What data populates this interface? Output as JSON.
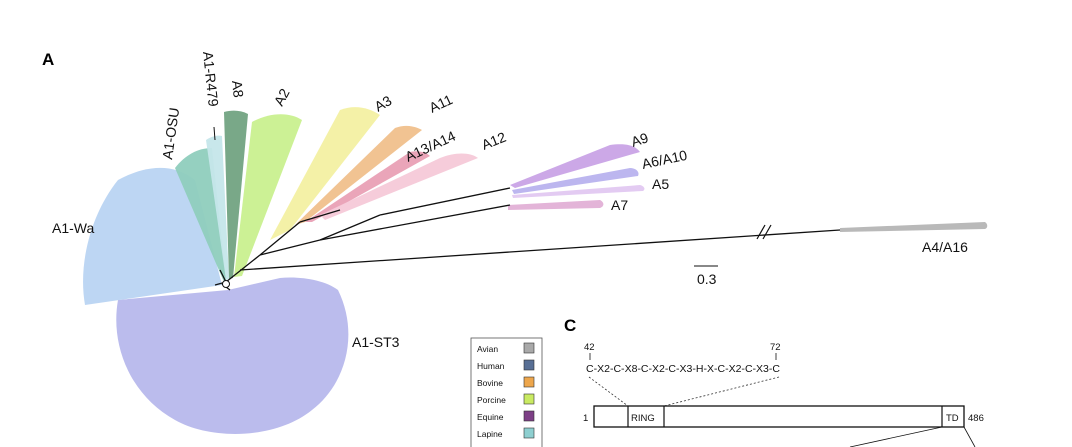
{
  "panels": {
    "a": "A",
    "c": "C"
  },
  "clades": {
    "wa": "A1-Wa",
    "osu": "A1-OSU",
    "r479": "A1-R479",
    "a8": "A8",
    "a2": "A2",
    "a3": "A3",
    "a11": "A11",
    "a13": "A13/A14",
    "a12": "A12",
    "a9": "A9",
    "a6": "A6/A10",
    "a5": "A5",
    "a7": "A7",
    "a4": "A4/A16",
    "st3": "A1-ST3"
  },
  "clade_colors": {
    "wa": "#b9d4f2",
    "osu": "#8fcdbd",
    "r479": "#c5e6ea",
    "a8": "#72a382",
    "a2": "#c9f08f",
    "a3": "#f3f0a2",
    "a11": "#f0c08c",
    "a13": "#e9a0b5",
    "a12": "#f5c9d8",
    "a9": "#c9a3e6",
    "a6": "#b8b2ee",
    "a5": "#e1c8f1",
    "a7": "#e2b0d6",
    "a4": "#b5b5b5",
    "st3": "#b7b8ec"
  },
  "scale_bar": "0.3",
  "legend": [
    {
      "label": "Avian",
      "color": "#a9a9a9"
    },
    {
      "label": "Human",
      "color": "#586f95"
    },
    {
      "label": "Bovine",
      "color": "#eda64c"
    },
    {
      "label": "Porcine",
      "color": "#c9ea62"
    },
    {
      "label": "Equine",
      "color": "#7d3f86"
    },
    {
      "label": "Lapine",
      "color": "#8ecfd0"
    }
  ],
  "panel_c": {
    "motif_start": "42",
    "motif_end": "72",
    "motif": "C-X2-C-X8-C-X2-C-X3-H-X-C-X2-C-X3-C",
    "protein_start": "1",
    "protein_end": "486",
    "domain_ring": "RING",
    "domain_td": "TD"
  }
}
